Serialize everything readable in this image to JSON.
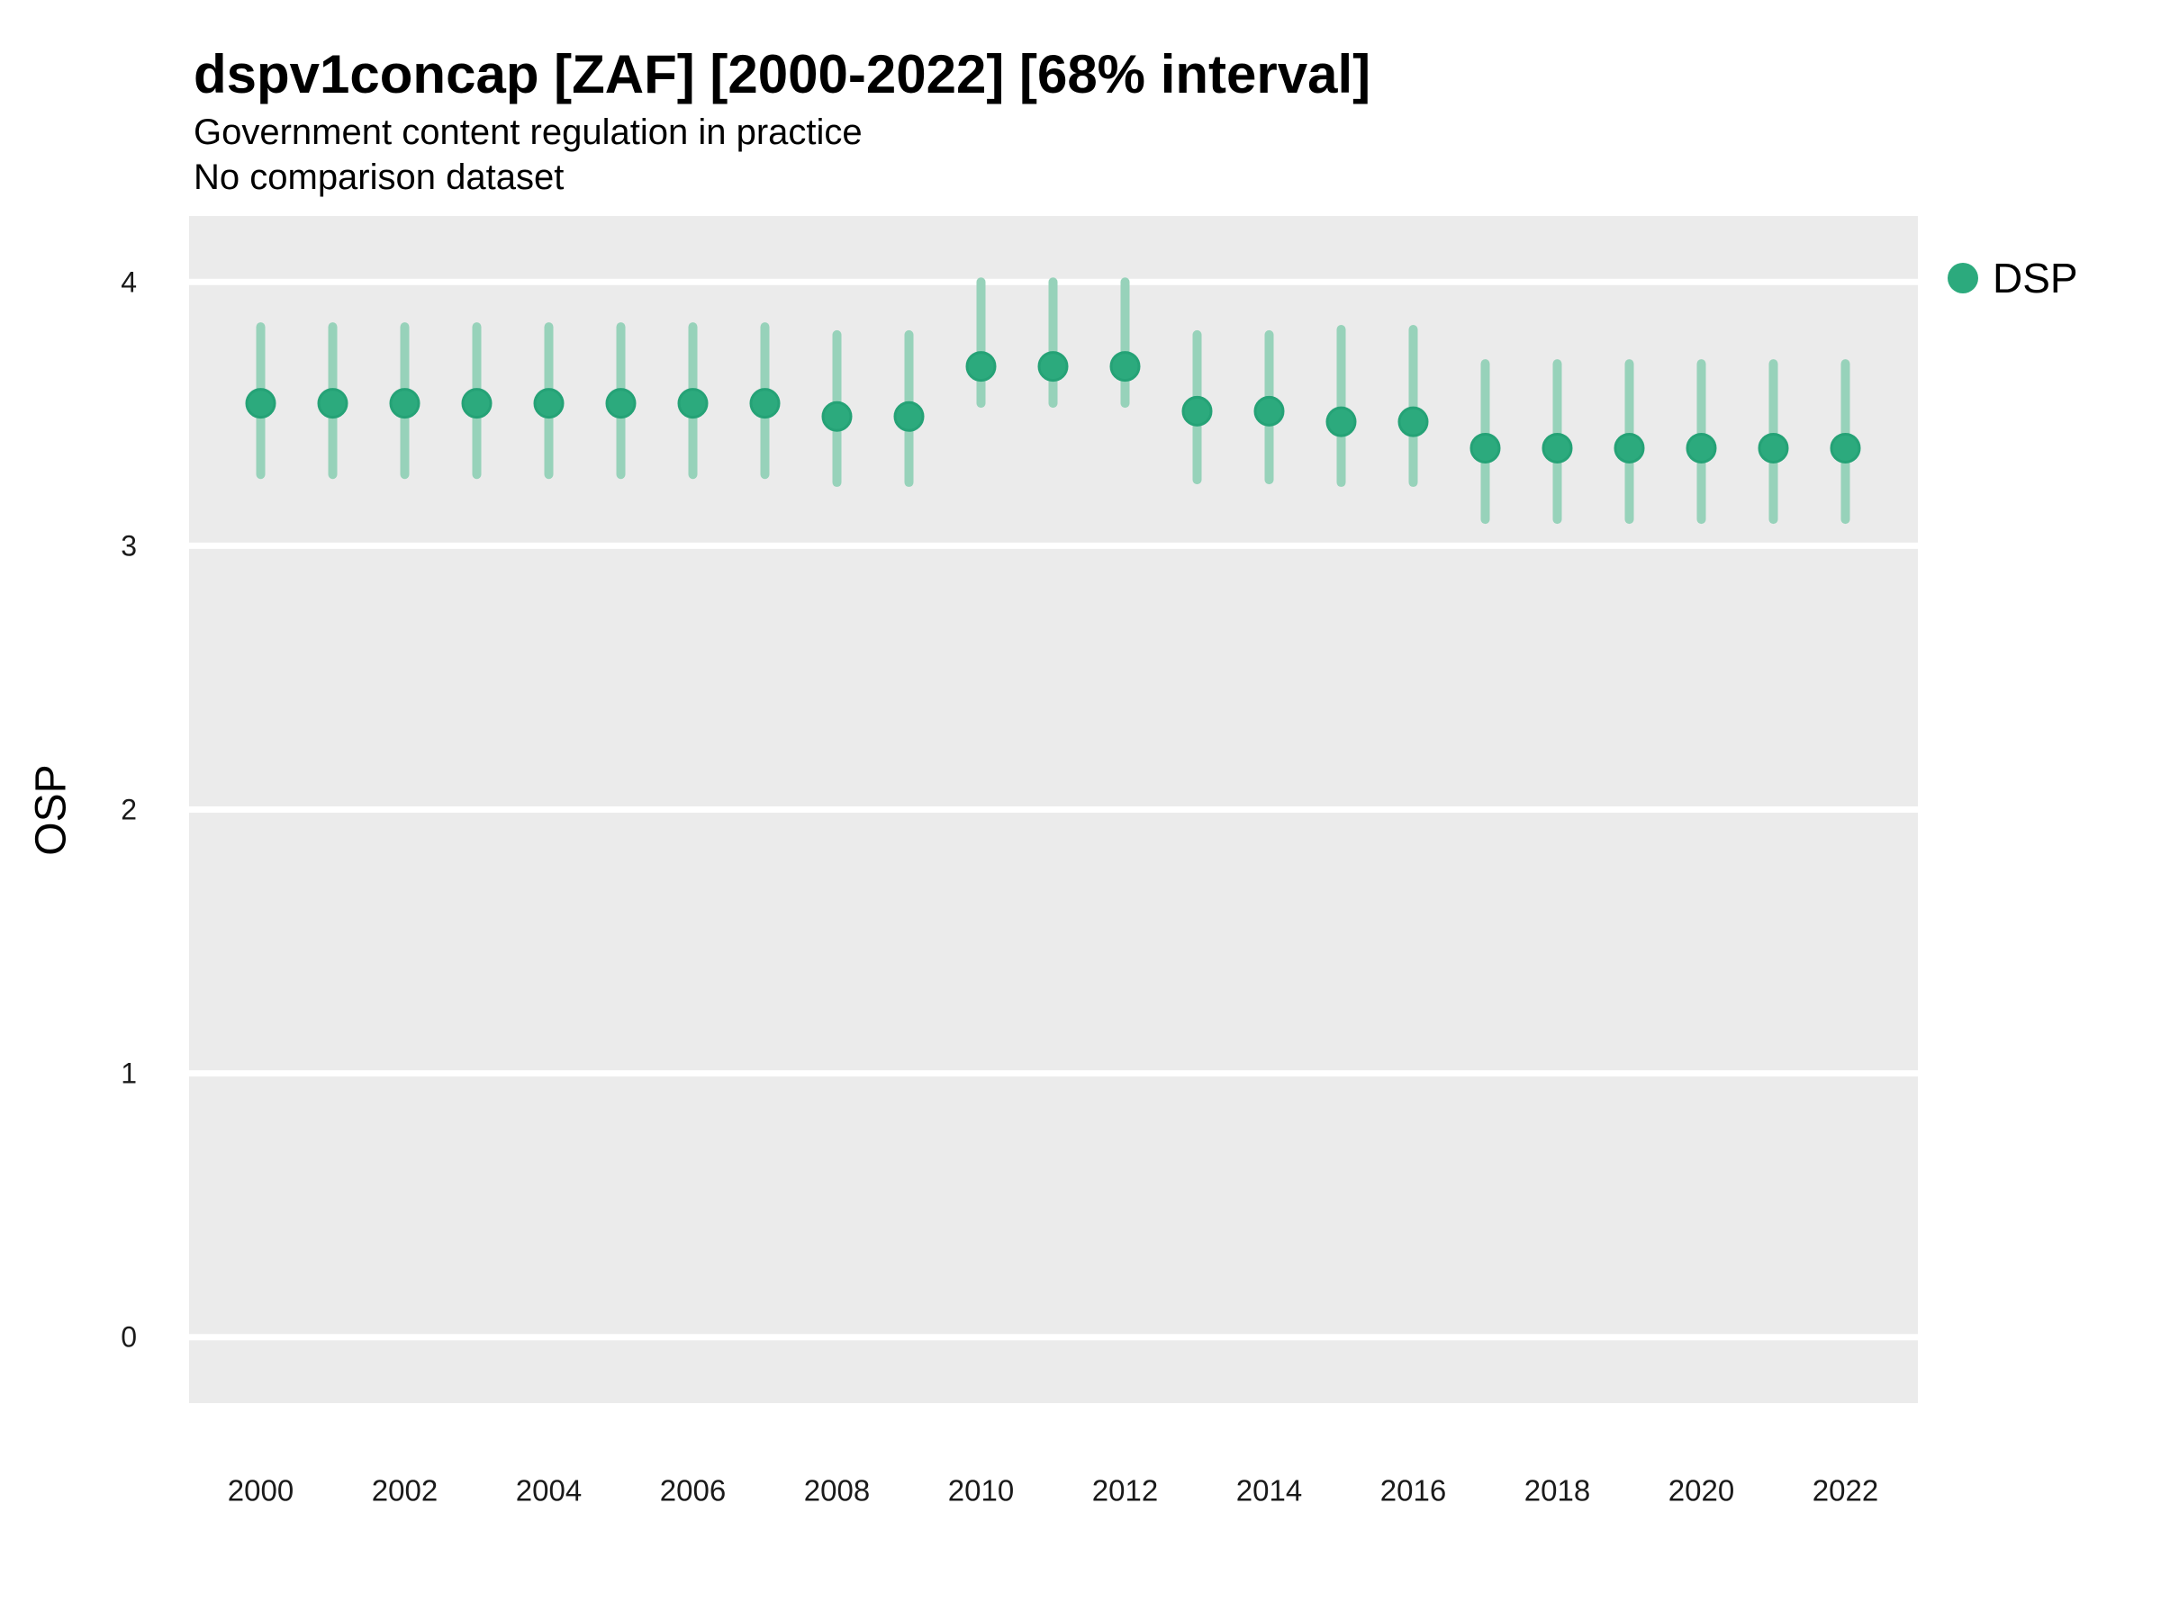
{
  "header": {
    "title": "dspv1concap [ZAF] [2000-2022] [68% interval]",
    "subtitle": "Government content regulation in practice",
    "comparison_note": "No comparison dataset"
  },
  "colors": {
    "point_fill": "#2caa7d",
    "point_stroke": "#25a276",
    "interval_line": "#97d2ba",
    "panel_background": "#ebebeb",
    "gridline": "#ffffff",
    "tick_text": "#1a1a1a",
    "text": "#000000"
  },
  "chart_data": {
    "type": "pointrange",
    "title": "dspv1concap [ZAF] [2000-2022] [68% interval]",
    "subtitle": "Government content regulation in practice",
    "note": "No comparison dataset",
    "interval_level": "68%",
    "xlabel": "",
    "ylabel": "OSP",
    "ylim": [
      -0.25,
      4.25
    ],
    "yticks": [
      0,
      1,
      2,
      3,
      4
    ],
    "xticks": [
      2000,
      2002,
      2004,
      2006,
      2008,
      2010,
      2012,
      2014,
      2016,
      2018,
      2020,
      2022
    ],
    "grid": "horizontal-major-only",
    "legend_position": "right-top",
    "x": [
      2000,
      2001,
      2002,
      2003,
      2004,
      2005,
      2006,
      2007,
      2008,
      2009,
      2010,
      2011,
      2012,
      2013,
      2014,
      2015,
      2016,
      2017,
      2018,
      2019,
      2020,
      2021,
      2022
    ],
    "series": [
      {
        "name": "DSP",
        "estimates": [
          3.54,
          3.54,
          3.54,
          3.54,
          3.54,
          3.54,
          3.54,
          3.54,
          3.49,
          3.49,
          3.68,
          3.68,
          3.68,
          3.51,
          3.51,
          3.47,
          3.47,
          3.37,
          3.37,
          3.37,
          3.37,
          3.37,
          3.37
        ],
        "ci_low": [
          3.27,
          3.27,
          3.27,
          3.27,
          3.27,
          3.27,
          3.27,
          3.27,
          3.24,
          3.24,
          3.54,
          3.54,
          3.54,
          3.25,
          3.25,
          3.24,
          3.24,
          3.1,
          3.1,
          3.1,
          3.1,
          3.1,
          3.1
        ],
        "ci_high": [
          3.83,
          3.83,
          3.83,
          3.83,
          3.83,
          3.83,
          3.83,
          3.83,
          3.8,
          3.8,
          4.0,
          4.0,
          4.0,
          3.8,
          3.8,
          3.82,
          3.82,
          3.69,
          3.69,
          3.69,
          3.69,
          3.69,
          3.69
        ]
      }
    ]
  }
}
